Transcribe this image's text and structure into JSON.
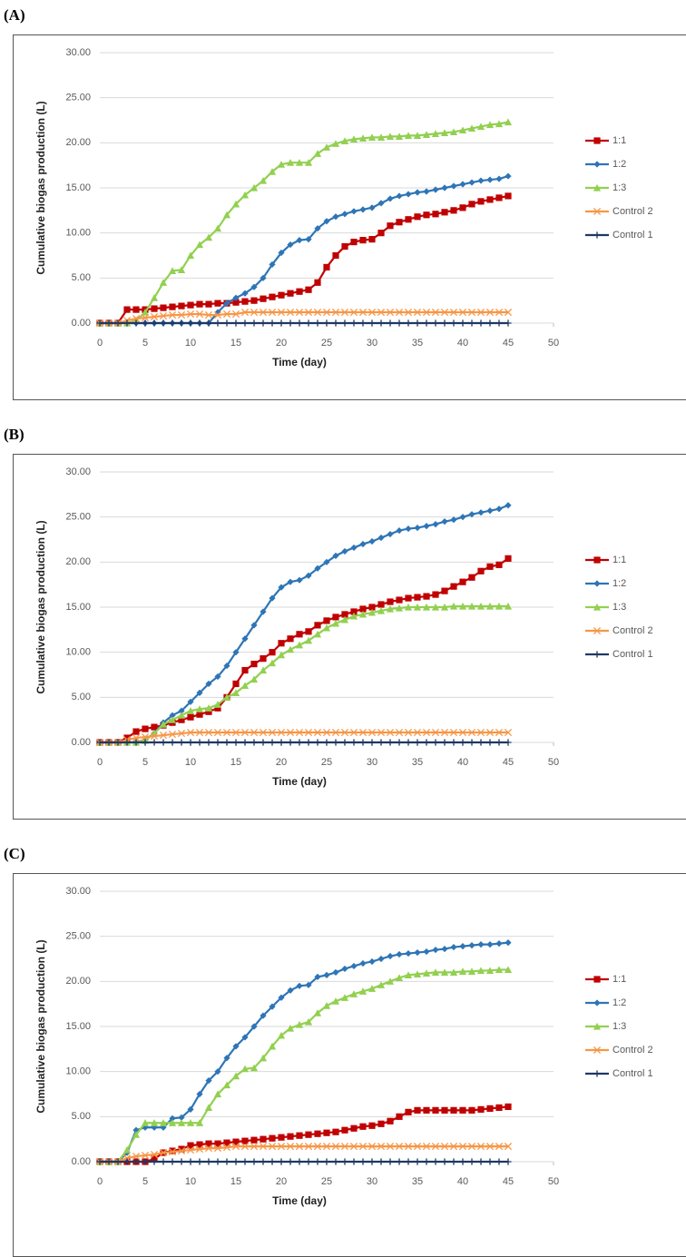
{
  "chart_data": [
    {
      "type": "line",
      "panel_label": "(A)",
      "x_label": "Time (day)",
      "y_label": "Cumulative biogas production (L)",
      "xlim": [
        0,
        50
      ],
      "xticks": [
        0,
        5,
        10,
        15,
        20,
        25,
        30,
        35,
        40,
        45,
        50
      ],
      "ylim": [
        0,
        30
      ],
      "yticks": [
        {
          "value": 0,
          "label": "0.00"
        },
        {
          "value": 5,
          "label": "5.00"
        },
        {
          "value": 10,
          "label": "10.00"
        },
        {
          "value": 15,
          "label": "15.00"
        },
        {
          "value": 20,
          "label": "20.00"
        },
        {
          "value": 25,
          "label": "25.00"
        },
        {
          "value": 30,
          "label": "30.00"
        }
      ],
      "grid": true,
      "legend": "right",
      "x": [
        0,
        1,
        2,
        3,
        4,
        5,
        6,
        7,
        8,
        9,
        10,
        11,
        12,
        13,
        14,
        15,
        16,
        17,
        18,
        19,
        20,
        21,
        22,
        23,
        24,
        25,
        26,
        27,
        28,
        29,
        30,
        31,
        32,
        33,
        34,
        35,
        36,
        37,
        38,
        39,
        40,
        41,
        42,
        43,
        44,
        45
      ],
      "series": [
        {
          "name": "1:1",
          "color": "#c00000",
          "marker": "square",
          "values": [
            0,
            0,
            0,
            1.5,
            1.5,
            1.5,
            1.6,
            1.7,
            1.8,
            1.9,
            2.0,
            2.1,
            2.1,
            2.2,
            2.2,
            2.3,
            2.4,
            2.5,
            2.7,
            2.9,
            3.1,
            3.3,
            3.5,
            3.7,
            4.5,
            6.2,
            7.5,
            8.5,
            9.0,
            9.2,
            9.3,
            10.0,
            10.8,
            11.2,
            11.5,
            11.8,
            12.0,
            12.1,
            12.3,
            12.5,
            12.8,
            13.2,
            13.5,
            13.7,
            13.9,
            14.1
          ]
        },
        {
          "name": "1:2",
          "color": "#2e75b6",
          "marker": "diamond",
          "values": [
            0,
            0,
            0,
            0,
            0,
            0,
            0,
            0,
            0,
            0,
            0,
            0,
            0,
            1.2,
            2.2,
            2.8,
            3.3,
            4.0,
            5.0,
            6.5,
            7.8,
            8.7,
            9.2,
            9.3,
            10.5,
            11.3,
            11.8,
            12.1,
            12.4,
            12.6,
            12.8,
            13.3,
            13.8,
            14.1,
            14.3,
            14.5,
            14.6,
            14.8,
            15.0,
            15.2,
            15.4,
            15.6,
            15.8,
            15.9,
            16.0,
            16.3
          ]
        },
        {
          "name": "1:3",
          "color": "#92d050",
          "marker": "triangle",
          "values": [
            0,
            0,
            0,
            0,
            0.3,
            1.2,
            2.8,
            4.5,
            5.8,
            5.9,
            7.5,
            8.7,
            9.5,
            10.5,
            12.0,
            13.2,
            14.2,
            15.0,
            15.8,
            16.8,
            17.6,
            17.8,
            17.8,
            17.8,
            18.8,
            19.5,
            19.9,
            20.2,
            20.4,
            20.5,
            20.6,
            20.6,
            20.7,
            20.7,
            20.8,
            20.8,
            20.9,
            21.0,
            21.1,
            21.2,
            21.4,
            21.6,
            21.8,
            22.0,
            22.1,
            22.3
          ]
        },
        {
          "name": "Control 2",
          "color": "#f79646",
          "marker": "x",
          "values": [
            0,
            0,
            0,
            0.3,
            0.5,
            0.6,
            0.7,
            0.8,
            0.9,
            0.9,
            1.0,
            1.0,
            0.9,
            0.9,
            1.0,
            1.0,
            1.2,
            1.2,
            1.2,
            1.2,
            1.2,
            1.2,
            1.2,
            1.2,
            1.2,
            1.2,
            1.2,
            1.2,
            1.2,
            1.2,
            1.2,
            1.2,
            1.2,
            1.2,
            1.2,
            1.2,
            1.2,
            1.2,
            1.2,
            1.2,
            1.2,
            1.2,
            1.2,
            1.2,
            1.2,
            1.2
          ]
        },
        {
          "name": "Control 1",
          "color": "#1f3864",
          "marker": "plus",
          "values": [
            0,
            0,
            0,
            0,
            0,
            0,
            0,
            0,
            0,
            0,
            0,
            0,
            0,
            0,
            0,
            0,
            0,
            0,
            0,
            0,
            0,
            0,
            0,
            0,
            0,
            0,
            0,
            0,
            0,
            0,
            0,
            0,
            0,
            0,
            0,
            0,
            0,
            0,
            0,
            0,
            0,
            0,
            0,
            0,
            0,
            0
          ]
        }
      ]
    },
    {
      "type": "line",
      "panel_label": "(B)",
      "x_label": "Time (day)",
      "y_label": "Cumulative biogas production (L)",
      "xlim": [
        0,
        50
      ],
      "xticks": [
        0,
        5,
        10,
        15,
        20,
        25,
        30,
        35,
        40,
        45,
        50
      ],
      "ylim": [
        0,
        30
      ],
      "yticks": [
        {
          "value": 0,
          "label": "0.00"
        },
        {
          "value": 5,
          "label": "5.00"
        },
        {
          "value": 10,
          "label": "10.00"
        },
        {
          "value": 15,
          "label": "15.00"
        },
        {
          "value": 20,
          "label": "20.00"
        },
        {
          "value": 25,
          "label": "25.00"
        },
        {
          "value": 30,
          "label": "30.00"
        }
      ],
      "grid": true,
      "legend": "right",
      "x": [
        0,
        1,
        2,
        3,
        4,
        5,
        6,
        7,
        8,
        9,
        10,
        11,
        12,
        13,
        14,
        15,
        16,
        17,
        18,
        19,
        20,
        21,
        22,
        23,
        24,
        25,
        26,
        27,
        28,
        29,
        30,
        31,
        32,
        33,
        34,
        35,
        36,
        37,
        38,
        39,
        40,
        41,
        42,
        43,
        44,
        45
      ],
      "series": [
        {
          "name": "1:1",
          "color": "#c00000",
          "marker": "square",
          "values": [
            0,
            0,
            0,
            0.5,
            1.2,
            1.5,
            1.7,
            1.9,
            2.2,
            2.5,
            2.8,
            3.1,
            3.4,
            3.8,
            5.0,
            6.5,
            8.0,
            8.7,
            9.3,
            10.0,
            11.0,
            11.5,
            12.0,
            12.3,
            13.0,
            13.5,
            13.9,
            14.2,
            14.5,
            14.8,
            15.0,
            15.3,
            15.6,
            15.8,
            16.0,
            16.1,
            16.2,
            16.4,
            16.8,
            17.3,
            17.8,
            18.3,
            19.0,
            19.5,
            19.7,
            20.4
          ]
        },
        {
          "name": "1:2",
          "color": "#2e75b6",
          "marker": "diamond",
          "values": [
            0,
            0,
            0,
            0,
            0,
            0.3,
            1.0,
            2.2,
            3.0,
            3.5,
            4.5,
            5.5,
            6.5,
            7.3,
            8.5,
            10.0,
            11.5,
            13.0,
            14.5,
            16.0,
            17.2,
            17.8,
            18.0,
            18.5,
            19.3,
            20.0,
            20.7,
            21.2,
            21.6,
            22.0,
            22.3,
            22.7,
            23.1,
            23.5,
            23.7,
            23.8,
            24.0,
            24.2,
            24.5,
            24.7,
            25.0,
            25.3,
            25.5,
            25.7,
            25.9,
            26.3
          ]
        },
        {
          "name": "1:3",
          "color": "#92d050",
          "marker": "triangle",
          "values": [
            0,
            0,
            0,
            0,
            0,
            0.2,
            1.0,
            2.0,
            2.5,
            3.0,
            3.5,
            3.7,
            3.8,
            4.2,
            5.0,
            5.5,
            6.3,
            7.0,
            8.0,
            8.8,
            9.7,
            10.3,
            10.8,
            11.3,
            12.0,
            12.7,
            13.2,
            13.6,
            14.0,
            14.2,
            14.4,
            14.6,
            14.8,
            14.9,
            15.0,
            15.0,
            15.0,
            15.0,
            15.0,
            15.1,
            15.1,
            15.1,
            15.1,
            15.1,
            15.1,
            15.1
          ]
        },
        {
          "name": "Control 2",
          "color": "#f79646",
          "marker": "x",
          "values": [
            0,
            0,
            0,
            0.3,
            0.5,
            0.6,
            0.7,
            0.8,
            0.9,
            1.0,
            1.1,
            1.1,
            1.1,
            1.1,
            1.1,
            1.1,
            1.1,
            1.1,
            1.1,
            1.1,
            1.1,
            1.1,
            1.1,
            1.1,
            1.1,
            1.1,
            1.1,
            1.1,
            1.1,
            1.1,
            1.1,
            1.1,
            1.1,
            1.1,
            1.1,
            1.1,
            1.1,
            1.1,
            1.1,
            1.1,
            1.1,
            1.1,
            1.1,
            1.1,
            1.1,
            1.1
          ]
        },
        {
          "name": "Control 1",
          "color": "#1f3864",
          "marker": "plus",
          "values": [
            0,
            0,
            0,
            0,
            0,
            0,
            0,
            0,
            0,
            0,
            0,
            0,
            0,
            0,
            0,
            0,
            0,
            0,
            0,
            0,
            0,
            0,
            0,
            0,
            0,
            0,
            0,
            0,
            0,
            0,
            0,
            0,
            0,
            0,
            0,
            0,
            0,
            0,
            0,
            0,
            0,
            0,
            0,
            0,
            0,
            0
          ]
        }
      ]
    },
    {
      "type": "line",
      "panel_label": "(C)",
      "x_label": "Time (day)",
      "y_label": "Cumulative biogas production (L)",
      "xlim": [
        0,
        50
      ],
      "xticks": [
        0,
        5,
        10,
        15,
        20,
        25,
        30,
        35,
        40,
        45,
        50
      ],
      "ylim": [
        0,
        30
      ],
      "yticks": [
        {
          "value": 0,
          "label": "0.00"
        },
        {
          "value": 5,
          "label": "5.00"
        },
        {
          "value": 10,
          "label": "10.00"
        },
        {
          "value": 15,
          "label": "15.00"
        },
        {
          "value": 20,
          "label": "20.00"
        },
        {
          "value": 25,
          "label": "25.00"
        },
        {
          "value": 30,
          "label": "30.00"
        }
      ],
      "grid": true,
      "legend": "right",
      "x": [
        0,
        1,
        2,
        3,
        4,
        5,
        6,
        7,
        8,
        9,
        10,
        11,
        12,
        13,
        14,
        15,
        16,
        17,
        18,
        19,
        20,
        21,
        22,
        23,
        24,
        25,
        26,
        27,
        28,
        29,
        30,
        31,
        32,
        33,
        34,
        35,
        36,
        37,
        38,
        39,
        40,
        41,
        42,
        43,
        44,
        45
      ],
      "series": [
        {
          "name": "1:1",
          "color": "#c00000",
          "marker": "square",
          "values": [
            0,
            0,
            0,
            0,
            0,
            0,
            0.3,
            1.0,
            1.2,
            1.4,
            1.8,
            1.9,
            2.0,
            2.0,
            2.1,
            2.2,
            2.3,
            2.4,
            2.5,
            2.6,
            2.7,
            2.8,
            2.9,
            3.0,
            3.1,
            3.2,
            3.3,
            3.5,
            3.7,
            3.9,
            4.0,
            4.2,
            4.5,
            5.0,
            5.5,
            5.7,
            5.7,
            5.7,
            5.7,
            5.7,
            5.7,
            5.7,
            5.8,
            5.9,
            6.0,
            6.1
          ]
        },
        {
          "name": "1:2",
          "color": "#2e75b6",
          "marker": "diamond",
          "values": [
            0,
            0,
            0,
            1.0,
            3.5,
            3.8,
            3.8,
            3.8,
            4.8,
            4.9,
            5.8,
            7.5,
            9.0,
            10.0,
            11.5,
            12.8,
            13.8,
            15.0,
            16.2,
            17.2,
            18.2,
            19.0,
            19.5,
            19.6,
            20.5,
            20.7,
            21.0,
            21.4,
            21.7,
            22.0,
            22.2,
            22.5,
            22.8,
            23.0,
            23.1,
            23.2,
            23.3,
            23.5,
            23.6,
            23.8,
            23.9,
            24.0,
            24.1,
            24.1,
            24.2,
            24.3
          ]
        },
        {
          "name": "1:3",
          "color": "#92d050",
          "marker": "triangle",
          "values": [
            0,
            0,
            0,
            1.3,
            3.0,
            4.3,
            4.3,
            4.3,
            4.3,
            4.3,
            4.3,
            4.3,
            6.0,
            7.5,
            8.5,
            9.5,
            10.3,
            10.4,
            11.5,
            12.8,
            14.0,
            14.8,
            15.2,
            15.5,
            16.5,
            17.3,
            17.8,
            18.2,
            18.6,
            18.9,
            19.2,
            19.6,
            20.0,
            20.4,
            20.7,
            20.8,
            20.9,
            21.0,
            21.0,
            21.0,
            21.1,
            21.1,
            21.2,
            21.2,
            21.3,
            21.3
          ]
        },
        {
          "name": "Control 2",
          "color": "#f79646",
          "marker": "x",
          "values": [
            0,
            0,
            0,
            0.4,
            0.6,
            0.7,
            0.8,
            1.0,
            1.1,
            1.2,
            1.3,
            1.4,
            1.5,
            1.5,
            1.6,
            1.7,
            1.7,
            1.7,
            1.7,
            1.7,
            1.7,
            1.7,
            1.7,
            1.7,
            1.7,
            1.7,
            1.7,
            1.7,
            1.7,
            1.7,
            1.7,
            1.7,
            1.7,
            1.7,
            1.7,
            1.7,
            1.7,
            1.7,
            1.7,
            1.7,
            1.7,
            1.7,
            1.7,
            1.7,
            1.7,
            1.7
          ]
        },
        {
          "name": "Control 1",
          "color": "#1f3864",
          "marker": "plus",
          "values": [
            0,
            0,
            0,
            0,
            0,
            0,
            0,
            0,
            0,
            0,
            0,
            0,
            0,
            0,
            0,
            0,
            0,
            0,
            0,
            0,
            0,
            0,
            0,
            0,
            0,
            0,
            0,
            0,
            0,
            0,
            0,
            0,
            0,
            0,
            0,
            0,
            0,
            0,
            0,
            0,
            0,
            0,
            0,
            0,
            0,
            0
          ]
        }
      ]
    }
  ]
}
